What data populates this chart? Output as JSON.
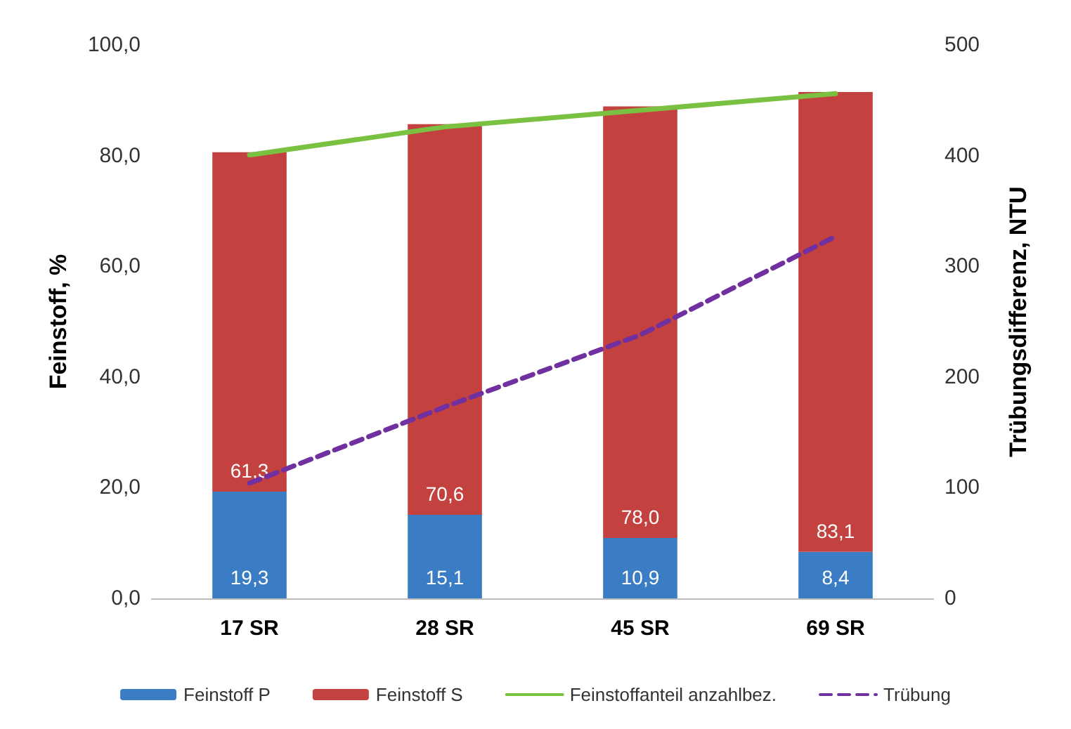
{
  "chart_data": {
    "type": "bar",
    "stacked": true,
    "categories": [
      "17 SR",
      "28 SR",
      "45 SR",
      "69 SR"
    ],
    "series": [
      {
        "name": "Feinstoff P",
        "color": "#3b7dc4",
        "values": [
          19.3,
          15.1,
          10.9,
          8.4
        ],
        "value_labels": [
          "19,3",
          "15,1",
          "10,9",
          "8,4"
        ]
      },
      {
        "name": "Feinstoff S",
        "color": "#c3423f",
        "values": [
          61.3,
          70.6,
          78.0,
          83.1
        ],
        "value_labels": [
          "61,3",
          "70,6",
          "78,0",
          "83,1"
        ]
      },
      {
        "name": "Feinstoffanteil anzahlbez.",
        "type": "line",
        "color": "#7ac142",
        "line_style": "solid",
        "values": [
          80.1,
          85.2,
          88.2,
          91.2
        ]
      },
      {
        "name": "Trübung",
        "type": "line",
        "axis": "y2",
        "color": "#7030a0",
        "line_style": "dashed",
        "values": [
          104,
          173,
          238,
          327
        ]
      }
    ],
    "ylabel": "Feinstoff, %",
    "y2label": "Trübungsdifferenz, NTU",
    "ylim": [
      0,
      100
    ],
    "yticks": [
      {
        "value": 0,
        "label": "0,0"
      },
      {
        "value": 20,
        "label": "20,0"
      },
      {
        "value": 40,
        "label": "40,0"
      },
      {
        "value": 60,
        "label": "60,0"
      },
      {
        "value": 80,
        "label": "80,0"
      },
      {
        "value": 100,
        "label": "100,0"
      }
    ],
    "y2lim": [
      0,
      500
    ],
    "y2ticks": [
      0,
      100,
      200,
      300,
      400,
      500
    ],
    "grid": false,
    "legend": "bottom"
  }
}
